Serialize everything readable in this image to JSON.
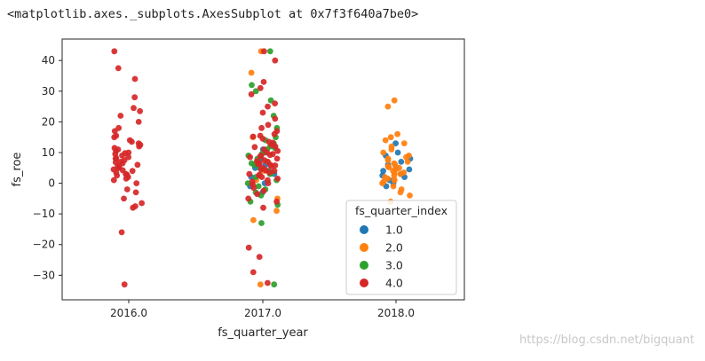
{
  "output": {
    "repr_text": "<matplotlib.axes._subplots.AxesSubplot at 0x7f3f640a7be0>"
  },
  "watermark": {
    "text": "https://blog.csdn.net/bigquant"
  },
  "chart_data": {
    "type": "scatter",
    "subtype": "stripplot",
    "title": "",
    "xlabel": "fs_quarter_year",
    "ylabel": "fs_roe",
    "categories": [
      "2016.0",
      "2017.0",
      "2018.0"
    ],
    "ylim": [
      -38,
      47
    ],
    "yticks": [
      -30,
      -20,
      -10,
      0,
      10,
      20,
      30,
      40
    ],
    "ytick_labels": [
      "−30",
      "−20",
      "−10",
      "0",
      "10",
      "20",
      "30",
      "40"
    ],
    "grid": false,
    "legend": {
      "title": "fs_quarter_index",
      "placement": "lower-right",
      "entries": [
        "1.0",
        "2.0",
        "3.0",
        "4.0"
      ]
    },
    "colors": {
      "1.0": "#1f77b4",
      "2.0": "#ff7f0e",
      "3.0": "#2ca02c",
      "4.0": "#d62728"
    },
    "series": [
      {
        "name": "1.0",
        "points": [
          {
            "category": "2017.0",
            "y": -3
          },
          {
            "category": "2017.0",
            "y": 0
          },
          {
            "category": "2017.0",
            "y": 2
          },
          {
            "category": "2017.0",
            "y": 5
          },
          {
            "category": "2017.0",
            "y": 8
          },
          {
            "category": "2017.0",
            "y": 11
          },
          {
            "category": "2017.0",
            "y": -1
          },
          {
            "category": "2017.0",
            "y": 3
          },
          {
            "category": "2017.0",
            "y": 6
          },
          {
            "category": "2018.0",
            "y": 0
          },
          {
            "category": "2018.0",
            "y": 1
          },
          {
            "category": "2018.0",
            "y": 2
          },
          {
            "category": "2018.0",
            "y": 3
          },
          {
            "category": "2018.0",
            "y": 4
          },
          {
            "category": "2018.0",
            "y": 5
          },
          {
            "category": "2018.0",
            "y": 6
          },
          {
            "category": "2018.0",
            "y": 7
          },
          {
            "category": "2018.0",
            "y": 9
          },
          {
            "category": "2018.0",
            "y": 10
          },
          {
            "category": "2018.0",
            "y": 13
          },
          {
            "category": "2018.0",
            "y": -1
          },
          {
            "category": "2018.0",
            "y": 2.5
          },
          {
            "category": "2018.0",
            "y": 4.5
          },
          {
            "category": "2018.0",
            "y": 8
          }
        ]
      },
      {
        "name": "2.0",
        "points": [
          {
            "category": "2017.0",
            "y": 36
          },
          {
            "category": "2017.0",
            "y": 43
          },
          {
            "category": "2017.0",
            "y": -9
          },
          {
            "category": "2017.0",
            "y": -12
          },
          {
            "category": "2017.0",
            "y": -33
          },
          {
            "category": "2017.0",
            "y": 4
          },
          {
            "category": "2017.0",
            "y": 7
          },
          {
            "category": "2017.0",
            "y": 1
          },
          {
            "category": "2017.0",
            "y": 15
          },
          {
            "category": "2017.0",
            "y": -5
          },
          {
            "category": "2018.0",
            "y": 27
          },
          {
            "category": "2018.0",
            "y": 25
          },
          {
            "category": "2018.0",
            "y": 16
          },
          {
            "category": "2018.0",
            "y": 15
          },
          {
            "category": "2018.0",
            "y": 14
          },
          {
            "category": "2018.0",
            "y": 13
          },
          {
            "category": "2018.0",
            "y": 12
          },
          {
            "category": "2018.0",
            "y": 11
          },
          {
            "category": "2018.0",
            "y": 10
          },
          {
            "category": "2018.0",
            "y": 9
          },
          {
            "category": "2018.0",
            "y": 8
          },
          {
            "category": "2018.0",
            "y": 7
          },
          {
            "category": "2018.0",
            "y": 6
          },
          {
            "category": "2018.0",
            "y": 5.5
          },
          {
            "category": "2018.0",
            "y": 5
          },
          {
            "category": "2018.0",
            "y": 4
          },
          {
            "category": "2018.0",
            "y": 3.5
          },
          {
            "category": "2018.0",
            "y": 3
          },
          {
            "category": "2018.0",
            "y": 2
          },
          {
            "category": "2018.0",
            "y": 1.5
          },
          {
            "category": "2018.0",
            "y": 1
          },
          {
            "category": "2018.0",
            "y": 0.5
          },
          {
            "category": "2018.0",
            "y": 0
          },
          {
            "category": "2018.0",
            "y": -1
          },
          {
            "category": "2018.0",
            "y": -2
          },
          {
            "category": "2018.0",
            "y": -3
          },
          {
            "category": "2018.0",
            "y": -4
          },
          {
            "category": "2018.0",
            "y": -6
          },
          {
            "category": "2018.0",
            "y": 6.5
          },
          {
            "category": "2018.0",
            "y": 4.5
          },
          {
            "category": "2018.0",
            "y": 2.5
          },
          {
            "category": "2018.0",
            "y": 8.5
          },
          {
            "category": "2018.0",
            "y": 3.2
          },
          {
            "category": "2018.0",
            "y": 1.2
          },
          {
            "category": "2018.0",
            "y": 5.2
          },
          {
            "category": "2018.0",
            "y": 7.5
          }
        ]
      },
      {
        "name": "3.0",
        "points": [
          {
            "category": "2017.0",
            "y": 43
          },
          {
            "category": "2017.0",
            "y": 32
          },
          {
            "category": "2017.0",
            "y": 30
          },
          {
            "category": "2017.0",
            "y": 27
          },
          {
            "category": "2017.0",
            "y": 22
          },
          {
            "category": "2017.0",
            "y": 18
          },
          {
            "category": "2017.0",
            "y": 15
          },
          {
            "category": "2017.0",
            "y": 13
          },
          {
            "category": "2017.0",
            "y": 12
          },
          {
            "category": "2017.0",
            "y": 11
          },
          {
            "category": "2017.0",
            "y": 10
          },
          {
            "category": "2017.0",
            "y": 9
          },
          {
            "category": "2017.0",
            "y": 8
          },
          {
            "category": "2017.0",
            "y": 7
          },
          {
            "category": "2017.0",
            "y": 6
          },
          {
            "category": "2017.0",
            "y": 5
          },
          {
            "category": "2017.0",
            "y": 4
          },
          {
            "category": "2017.0",
            "y": 3
          },
          {
            "category": "2017.0",
            "y": 2
          },
          {
            "category": "2017.0",
            "y": 1
          },
          {
            "category": "2017.0",
            "y": 0
          },
          {
            "category": "2017.0",
            "y": -1
          },
          {
            "category": "2017.0",
            "y": -2
          },
          {
            "category": "2017.0",
            "y": -4
          },
          {
            "category": "2017.0",
            "y": -6
          },
          {
            "category": "2017.0",
            "y": -7
          },
          {
            "category": "2017.0",
            "y": -13
          },
          {
            "category": "2017.0",
            "y": -33
          },
          {
            "category": "2017.0",
            "y": 14
          },
          {
            "category": "2017.0",
            "y": 9.5
          },
          {
            "category": "2017.0",
            "y": 6.5
          },
          {
            "category": "2017.0",
            "y": 3.5
          },
          {
            "category": "2017.0",
            "y": 11.5
          },
          {
            "category": "2017.0",
            "y": -3
          }
        ]
      },
      {
        "name": "4.0",
        "points": [
          {
            "category": "2016.0",
            "y": 43
          },
          {
            "category": "2016.0",
            "y": 37.5
          },
          {
            "category": "2016.0",
            "y": 34
          },
          {
            "category": "2016.0",
            "y": 28
          },
          {
            "category": "2016.0",
            "y": 24.5
          },
          {
            "category": "2016.0",
            "y": 23.5
          },
          {
            "category": "2016.0",
            "y": 22
          },
          {
            "category": "2016.0",
            "y": 20
          },
          {
            "category": "2016.0",
            "y": 18
          },
          {
            "category": "2016.0",
            "y": 17
          },
          {
            "category": "2016.0",
            "y": 15.5
          },
          {
            "category": "2016.0",
            "y": 15
          },
          {
            "category": "2016.0",
            "y": 14
          },
          {
            "category": "2016.0",
            "y": 13
          },
          {
            "category": "2016.0",
            "y": 12
          },
          {
            "category": "2016.0",
            "y": 11
          },
          {
            "category": "2016.0",
            "y": 10
          },
          {
            "category": "2016.0",
            "y": 9.5
          },
          {
            "category": "2016.0",
            "y": 9
          },
          {
            "category": "2016.0",
            "y": 8.5
          },
          {
            "category": "2016.0",
            "y": 8
          },
          {
            "category": "2016.0",
            "y": 7.5
          },
          {
            "category": "2016.0",
            "y": 7
          },
          {
            "category": "2016.0",
            "y": 6.5
          },
          {
            "category": "2016.0",
            "y": 6
          },
          {
            "category": "2016.0",
            "y": 5.5
          },
          {
            "category": "2016.0",
            "y": 5
          },
          {
            "category": "2016.0",
            "y": 4.5
          },
          {
            "category": "2016.0",
            "y": 4
          },
          {
            "category": "2016.0",
            "y": 3.5
          },
          {
            "category": "2016.0",
            "y": 3
          },
          {
            "category": "2016.0",
            "y": 2.5
          },
          {
            "category": "2016.0",
            "y": 2
          },
          {
            "category": "2016.0",
            "y": 1.5
          },
          {
            "category": "2016.0",
            "y": 1
          },
          {
            "category": "2016.0",
            "y": 0
          },
          {
            "category": "2016.0",
            "y": -2
          },
          {
            "category": "2016.0",
            "y": -3
          },
          {
            "category": "2016.0",
            "y": -5
          },
          {
            "category": "2016.0",
            "y": -6.5
          },
          {
            "category": "2016.0",
            "y": -7.5
          },
          {
            "category": "2016.0",
            "y": -8
          },
          {
            "category": "2016.0",
            "y": -16
          },
          {
            "category": "2016.0",
            "y": -33
          },
          {
            "category": "2016.0",
            "y": 10.5
          },
          {
            "category": "2016.0",
            "y": 12.5
          },
          {
            "category": "2016.0",
            "y": 8.2
          },
          {
            "category": "2016.0",
            "y": 6.8
          },
          {
            "category": "2016.0",
            "y": 5.2
          },
          {
            "category": "2016.0",
            "y": 4.2
          },
          {
            "category": "2016.0",
            "y": 11.5
          },
          {
            "category": "2016.0",
            "y": 13.5
          },
          {
            "category": "2016.0",
            "y": 2.8
          },
          {
            "category": "2016.0",
            "y": 9.8
          },
          {
            "category": "2017.0",
            "y": 43
          },
          {
            "category": "2017.0",
            "y": 40
          },
          {
            "category": "2017.0",
            "y": 33
          },
          {
            "category": "2017.0",
            "y": 31
          },
          {
            "category": "2017.0",
            "y": 29
          },
          {
            "category": "2017.0",
            "y": 26
          },
          {
            "category": "2017.0",
            "y": 25
          },
          {
            "category": "2017.0",
            "y": 23
          },
          {
            "category": "2017.0",
            "y": 21
          },
          {
            "category": "2017.0",
            "y": 19
          },
          {
            "category": "2017.0",
            "y": 18
          },
          {
            "category": "2017.0",
            "y": 17
          },
          {
            "category": "2017.0",
            "y": 16
          },
          {
            "category": "2017.0",
            "y": 15.5
          },
          {
            "category": "2017.0",
            "y": 14.5
          },
          {
            "category": "2017.0",
            "y": 13.5
          },
          {
            "category": "2017.0",
            "y": 12.5
          },
          {
            "category": "2017.0",
            "y": 12
          },
          {
            "category": "2017.0",
            "y": 11
          },
          {
            "category": "2017.0",
            "y": 10.5
          },
          {
            "category": "2017.0",
            "y": 10
          },
          {
            "category": "2017.0",
            "y": 9.5
          },
          {
            "category": "2017.0",
            "y": 9
          },
          {
            "category": "2017.0",
            "y": 8.5
          },
          {
            "category": "2017.0",
            "y": 8
          },
          {
            "category": "2017.0",
            "y": 7.5
          },
          {
            "category": "2017.0",
            "y": 7
          },
          {
            "category": "2017.0",
            "y": 6.5
          },
          {
            "category": "2017.0",
            "y": 6
          },
          {
            "category": "2017.0",
            "y": 5.5
          },
          {
            "category": "2017.0",
            "y": 5
          },
          {
            "category": "2017.0",
            "y": 4.5
          },
          {
            "category": "2017.0",
            "y": 4
          },
          {
            "category": "2017.0",
            "y": 3.5
          },
          {
            "category": "2017.0",
            "y": 3
          },
          {
            "category": "2017.0",
            "y": 2.5
          },
          {
            "category": "2017.0",
            "y": 2
          },
          {
            "category": "2017.0",
            "y": 1.5
          },
          {
            "category": "2017.0",
            "y": 1
          },
          {
            "category": "2017.0",
            "y": 0.5
          },
          {
            "category": "2017.0",
            "y": 0
          },
          {
            "category": "2017.0",
            "y": -0.5
          },
          {
            "category": "2017.0",
            "y": -1.5
          },
          {
            "category": "2017.0",
            "y": -2.5
          },
          {
            "category": "2017.0",
            "y": -3.5
          },
          {
            "category": "2017.0",
            "y": -5
          },
          {
            "category": "2017.0",
            "y": -6
          },
          {
            "category": "2017.0",
            "y": -8
          },
          {
            "category": "2017.0",
            "y": -21
          },
          {
            "category": "2017.0",
            "y": -24
          },
          {
            "category": "2017.0",
            "y": -29
          },
          {
            "category": "2017.0",
            "y": -32.5
          },
          {
            "category": "2017.0",
            "y": 11.8
          },
          {
            "category": "2017.0",
            "y": 9.2
          },
          {
            "category": "2017.0",
            "y": 7.2
          },
          {
            "category": "2017.0",
            "y": 5.8
          },
          {
            "category": "2017.0",
            "y": 4.2
          },
          {
            "category": "2017.0",
            "y": 2.8
          },
          {
            "category": "2017.0",
            "y": 13.2
          },
          {
            "category": "2017.0",
            "y": 15.2
          },
          {
            "category": "2017.0",
            "y": 6.2
          },
          {
            "category": "2017.0",
            "y": 8.8
          }
        ]
      }
    ]
  }
}
